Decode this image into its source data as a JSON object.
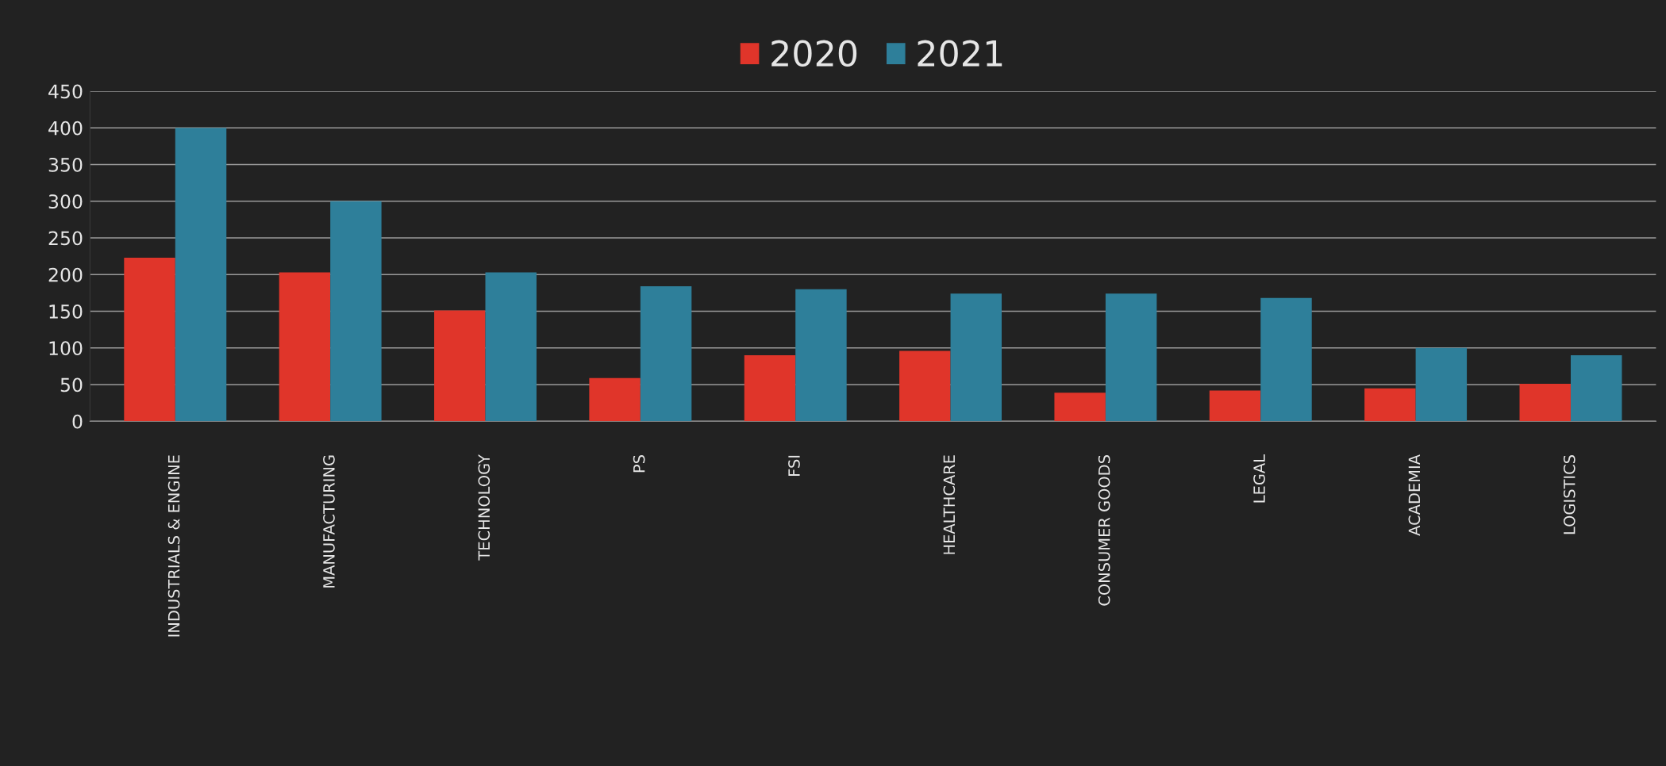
{
  "chart_data": {
    "type": "bar",
    "categories": [
      "INDUSTRIALS & ENGINE",
      "MANUFACTURING",
      "TECHNOLOGY",
      "PS",
      "FSI",
      "HEALTHCARE",
      "CONSUMER GOODS",
      "LEGAL",
      "ACADEMIA",
      "LOGISTICS"
    ],
    "series": [
      {
        "name": "2020",
        "color": "#e0352a",
        "values": [
          223,
          203,
          151,
          59,
          90,
          96,
          39,
          42,
          45,
          51
        ]
      },
      {
        "name": "2021",
        "color": "#2e7f9a",
        "values": [
          400,
          300,
          203,
          184,
          180,
          174,
          174,
          168,
          100,
          90
        ]
      }
    ],
    "ylim": [
      0,
      450
    ],
    "yticks": [
      0,
      50,
      100,
      150,
      200,
      250,
      300,
      350,
      400,
      450
    ],
    "grid": "y",
    "legend": "top"
  }
}
